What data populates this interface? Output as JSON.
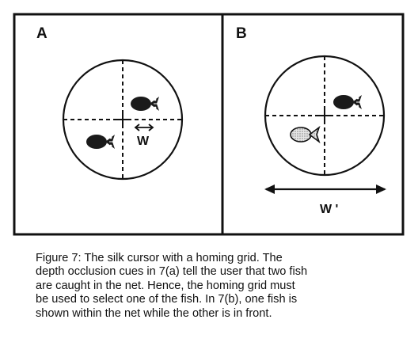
{
  "figure": {
    "panel_a": {
      "label": "A",
      "width_label": "W"
    },
    "panel_b": {
      "label": "B",
      "width_label": "W '"
    }
  },
  "caption": {
    "lines": [
      "Figure 7:  The silk cursor with a homing grid.  The",
      "depth occlusion cues in 7(a) tell the user that two fish",
      "are caught in the net.  Hence, the homing grid must",
      "be used to select one of the fish.  In 7(b), one fish is",
      "shown within the net while the other is in front."
    ]
  },
  "colors": {
    "ink": "#111111",
    "fish_dark": "#1a1a1a",
    "fish_light": "#cfcfcf"
  }
}
